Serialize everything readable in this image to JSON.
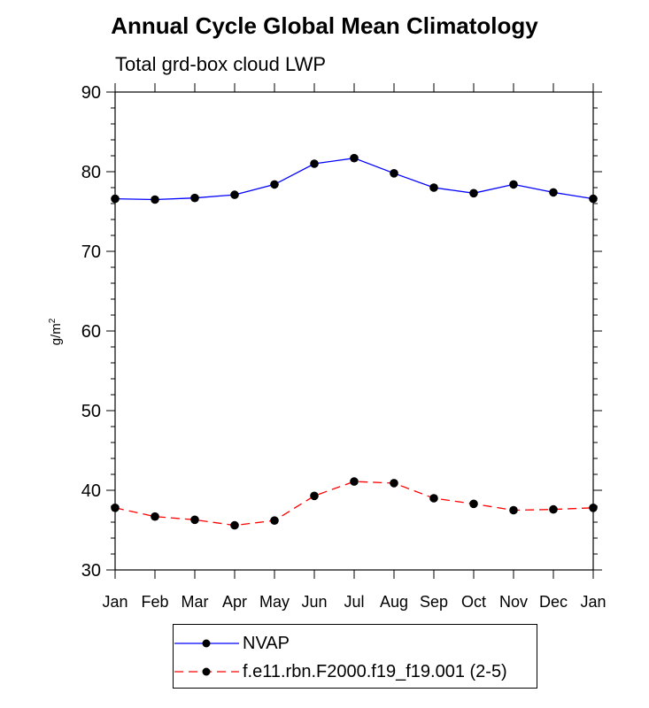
{
  "chart_data": {
    "type": "line",
    "title": "Annual Cycle Global Mean Climatology",
    "subtitle": "Total grd-box cloud LWP",
    "ylabel_base": "g/m",
    "ylabel_sup": "2",
    "xlabel": "",
    "categories": [
      "Jan",
      "Feb",
      "Mar",
      "Apr",
      "May",
      "Jun",
      "Jul",
      "Aug",
      "Sep",
      "Oct",
      "Nov",
      "Dec",
      "Jan"
    ],
    "ylim": [
      30,
      90
    ],
    "yticks": [
      "30",
      "40",
      "50",
      "60",
      "70",
      "80",
      "90"
    ],
    "grid": false,
    "legend_position": "bottom",
    "series": [
      {
        "name": "NVAP",
        "color": "#0000ff",
        "line_style": "solid",
        "marker": "filled-circle",
        "values": [
          76.6,
          76.5,
          76.7,
          77.1,
          78.4,
          81.0,
          81.7,
          79.8,
          78.0,
          77.3,
          78.4,
          77.4,
          76.6
        ]
      },
      {
        "name": "f.e11.rbn.F2000.f19_f19.001 (2-5)",
        "color": "#ff0000",
        "line_style": "dashed",
        "marker": "filled-circle",
        "values": [
          37.8,
          36.7,
          36.3,
          35.6,
          36.2,
          39.3,
          41.1,
          40.9,
          39.0,
          38.3,
          37.5,
          37.6,
          37.8
        ]
      }
    ]
  }
}
